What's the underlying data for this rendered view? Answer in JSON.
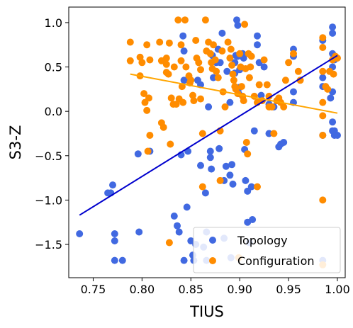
{
  "chart_data": {
    "type": "scatter",
    "title": "",
    "xlabel": "TIUS",
    "ylabel": "S3-Z",
    "xlim": [
      0.725,
      1.008
    ],
    "ylim": [
      -1.875,
      1.175
    ],
    "xticks": [
      0.75,
      0.8,
      0.85,
      0.9,
      0.95,
      1.0
    ],
    "xtick_labels": [
      "0.75",
      "0.80",
      "0.85",
      "0.90",
      "0.95",
      "1.00"
    ],
    "yticks": [
      -1.5,
      -1.0,
      -0.5,
      0.0,
      0.5,
      1.0
    ],
    "ytick_labels": [
      "−1.5",
      "−1.0",
      "−0.5",
      "0.0",
      "0.5",
      "1.0"
    ],
    "grid": false,
    "legend_position": "bottom-right",
    "series": [
      {
        "name": "Topology",
        "color": "#4169e1",
        "points": [
          [
            0.736,
            -1.38
          ],
          [
            0.765,
            -0.92
          ],
          [
            0.768,
            -0.92
          ],
          [
            0.77,
            -0.83
          ],
          [
            0.772,
            -1.38
          ],
          [
            0.772,
            -1.46
          ],
          [
            0.772,
            -1.68
          ],
          [
            0.78,
            -1.68
          ],
          [
            0.796,
            -0.48
          ],
          [
            0.797,
            -1.36
          ],
          [
            0.808,
            -0.45
          ],
          [
            0.833,
            -1.18
          ],
          [
            0.836,
            -1.29
          ],
          [
            0.838,
            -1.36
          ],
          [
            0.84,
            -0.49
          ],
          [
            0.842,
            0.85
          ],
          [
            0.843,
            0.68
          ],
          [
            0.843,
            0.35
          ],
          [
            0.843,
            -1.68
          ],
          [
            0.846,
            -1.08
          ],
          [
            0.847,
            -0.45
          ],
          [
            0.85,
            -1.46
          ],
          [
            0.852,
            -1.62
          ],
          [
            0.853,
            -1.68
          ],
          [
            0.855,
            -1.5
          ],
          [
            0.857,
            0.35
          ],
          [
            0.86,
            0.3
          ],
          [
            0.86,
            -0.61
          ],
          [
            0.863,
            -1.53
          ],
          [
            0.865,
            -0.92
          ],
          [
            0.866,
            -1.36
          ],
          [
            0.866,
            -1.68
          ],
          [
            0.868,
            0.05
          ],
          [
            0.87,
            -0.45
          ],
          [
            0.87,
            -0.52
          ],
          [
            0.871,
            -0.65
          ],
          [
            0.872,
            0.63
          ],
          [
            0.873,
            0.38
          ],
          [
            0.876,
            0.55
          ],
          [
            0.878,
            0.7
          ],
          [
            0.879,
            -0.42
          ],
          [
            0.88,
            0.55
          ],
          [
            0.882,
            0.88
          ],
          [
            0.884,
            -0.78
          ],
          [
            0.884,
            -1.43
          ],
          [
            0.886,
            -0.62
          ],
          [
            0.887,
            0.45
          ],
          [
            0.89,
            -0.72
          ],
          [
            0.89,
            0.1
          ],
          [
            0.891,
            -1.65
          ],
          [
            0.892,
            -0.6
          ],
          [
            0.893,
            -0.82
          ],
          [
            0.895,
            0.55
          ],
          [
            0.895,
            0.43
          ],
          [
            0.896,
            0.63
          ],
          [
            0.897,
            1.03
          ],
          [
            0.898,
            0.97
          ],
          [
            0.898,
            0.62
          ],
          [
            0.899,
            0.2
          ],
          [
            0.9,
            0.47
          ],
          [
            0.9,
            0.27
          ],
          [
            0.903,
            0.65
          ],
          [
            0.904,
            0.6
          ],
          [
            0.905,
            -0.43
          ],
          [
            0.906,
            -0.78
          ],
          [
            0.908,
            -0.9
          ],
          [
            0.908,
            -1.25
          ],
          [
            0.91,
            -1.48
          ],
          [
            0.912,
            -0.85
          ],
          [
            0.913,
            -1.22
          ],
          [
            0.915,
            -0.22
          ],
          [
            0.918,
            0.85
          ],
          [
            0.918,
            0.75
          ],
          [
            0.92,
            0.55
          ],
          [
            0.922,
            0.18
          ],
          [
            0.925,
            0.5
          ],
          [
            0.93,
            -0.25
          ],
          [
            0.93,
            0.08
          ],
          [
            0.935,
            0.05
          ],
          [
            0.94,
            -0.4
          ],
          [
            0.942,
            -0.37
          ],
          [
            0.945,
            -0.35
          ],
          [
            0.955,
            0.7
          ],
          [
            0.955,
            0.62
          ],
          [
            0.955,
            0.22
          ],
          [
            0.955,
            0.1
          ],
          [
            0.985,
            0.8
          ],
          [
            0.985,
            0.38
          ],
          [
            0.985,
            0.28
          ],
          [
            0.985,
            -0.27
          ],
          [
            0.985,
            -1.68
          ],
          [
            0.995,
            0.95
          ],
          [
            0.995,
            0.88
          ],
          [
            0.995,
            0.65
          ],
          [
            0.995,
            0.5
          ],
          [
            0.995,
            0.22
          ],
          [
            0.995,
            -0.12
          ],
          [
            0.997,
            -0.22
          ],
          [
            0.997,
            -0.27
          ],
          [
            1.0,
            -0.27
          ],
          [
            0.995,
            -0.22
          ],
          [
            0.993,
            0.15
          ],
          [
            0.997,
            0.58
          ]
        ]
      },
      {
        "name": "Configuration",
        "color": "#ff8c00",
        "points": [
          [
            0.788,
            0.78
          ],
          [
            0.788,
            0.57
          ],
          [
            0.798,
            0.61
          ],
          [
            0.798,
            0.4
          ],
          [
            0.8,
            0.55
          ],
          [
            0.802,
            0.2
          ],
          [
            0.803,
            0.1
          ],
          [
            0.805,
            0.75
          ],
          [
            0.805,
            0.01
          ],
          [
            0.806,
            -0.45
          ],
          [
            0.807,
            0.15
          ],
          [
            0.808,
            -0.27
          ],
          [
            0.808,
            0.58
          ],
          [
            0.818,
            0.78
          ],
          [
            0.82,
            0.57
          ],
          [
            0.82,
            -0.13
          ],
          [
            0.822,
            -0.18
          ],
          [
            0.825,
            0.6
          ],
          [
            0.825,
            0.53
          ],
          [
            0.825,
            0.44
          ],
          [
            0.827,
            0.42
          ],
          [
            0.828,
            0.77
          ],
          [
            0.828,
            -1.48
          ],
          [
            0.829,
            -0.37
          ],
          [
            0.83,
            0.15
          ],
          [
            0.832,
            0.08
          ],
          [
            0.833,
            0.5
          ],
          [
            0.835,
            0.08
          ],
          [
            0.837,
            1.03
          ],
          [
            0.838,
            0.14
          ],
          [
            0.84,
            0.75
          ],
          [
            0.84,
            0.57
          ],
          [
            0.841,
            0.28
          ],
          [
            0.842,
            0.1
          ],
          [
            0.844,
            1.03
          ],
          [
            0.845,
            0.5
          ],
          [
            0.848,
            0.4
          ],
          [
            0.849,
            0.32
          ],
          [
            0.85,
            0.35
          ],
          [
            0.852,
            0.18
          ],
          [
            0.853,
            0.12
          ],
          [
            0.855,
            0.8
          ],
          [
            0.856,
            0.6
          ],
          [
            0.858,
            0.55
          ],
          [
            0.86,
            0.47
          ],
          [
            0.86,
            0.14
          ],
          [
            0.862,
            -0.25
          ],
          [
            0.862,
            -0.85
          ],
          [
            0.865,
            1.03
          ],
          [
            0.866,
            0.68
          ],
          [
            0.868,
            0.78
          ],
          [
            0.87,
            0.65
          ],
          [
            0.871,
            0.55
          ],
          [
            0.872,
            0.48
          ],
          [
            0.873,
            0.75
          ],
          [
            0.875,
            0.58
          ],
          [
            0.876,
            0.45
          ],
          [
            0.878,
            0.38
          ],
          [
            0.88,
            -0.22
          ],
          [
            0.88,
            -0.78
          ],
          [
            0.882,
            0.68
          ],
          [
            0.883,
            0.22
          ],
          [
            0.885,
            0.05
          ],
          [
            0.888,
            0.78
          ],
          [
            0.89,
            0.6
          ],
          [
            0.891,
            0.7
          ],
          [
            0.892,
            0.52
          ],
          [
            0.893,
            0.42
          ],
          [
            0.894,
            0.35
          ],
          [
            0.895,
            0.28
          ],
          [
            0.896,
            0.25
          ],
          [
            0.898,
            0.2
          ],
          [
            0.899,
            -1.65
          ],
          [
            0.9,
            0.65
          ],
          [
            0.901,
            0.5
          ],
          [
            0.902,
            0.28
          ],
          [
            0.903,
            0.17
          ],
          [
            0.904,
            0.12
          ],
          [
            0.905,
            0.98
          ],
          [
            0.906,
            0.48
          ],
          [
            0.907,
            -0.35
          ],
          [
            0.908,
            -0.48
          ],
          [
            0.909,
            0.65
          ],
          [
            0.91,
            0.38
          ],
          [
            0.911,
            0.5
          ],
          [
            0.912,
            0.62
          ],
          [
            0.915,
            0.17
          ],
          [
            0.918,
            0.1
          ],
          [
            0.918,
            -0.85
          ],
          [
            0.92,
            0.3
          ],
          [
            0.923,
            0.12
          ],
          [
            0.925,
            0.58
          ],
          [
            0.928,
            0.3
          ],
          [
            0.93,
            0.17
          ],
          [
            0.933,
            0.05
          ],
          [
            0.935,
            -0.25
          ],
          [
            0.938,
            0.12
          ],
          [
            0.94,
            0.15
          ],
          [
            0.942,
            0.1
          ],
          [
            0.945,
            0.05
          ],
          [
            0.947,
            0.35
          ],
          [
            0.95,
            0.55
          ],
          [
            0.955,
            0.65
          ],
          [
            0.96,
            0.45
          ],
          [
            0.962,
            0.35
          ],
          [
            0.985,
            0.83
          ],
          [
            0.985,
            0.72
          ],
          [
            0.985,
            0.45
          ],
          [
            0.985,
            0.1
          ],
          [
            0.985,
            -0.05
          ],
          [
            0.985,
            -0.27
          ],
          [
            0.985,
            -1.0
          ],
          [
            0.985,
            -1.73
          ],
          [
            0.988,
            0.28
          ],
          [
            0.99,
            0.25
          ],
          [
            0.992,
            0.45
          ],
          [
            0.995,
            0.58
          ],
          [
            0.996,
            0.42
          ],
          [
            0.998,
            0.62
          ],
          [
            1.0,
            0.6
          ],
          [
            0.93,
            0.05
          ]
        ]
      }
    ],
    "trend_lines": [
      {
        "series": "Topology",
        "color": "#0000cd",
        "x": [
          0.736,
          1.0
        ],
        "y": [
          -1.17,
          0.63
        ]
      },
      {
        "series": "Configuration",
        "color": "#ffa500",
        "x": [
          0.788,
          1.0
        ],
        "y": [
          0.42,
          -0.02
        ]
      }
    ]
  }
}
